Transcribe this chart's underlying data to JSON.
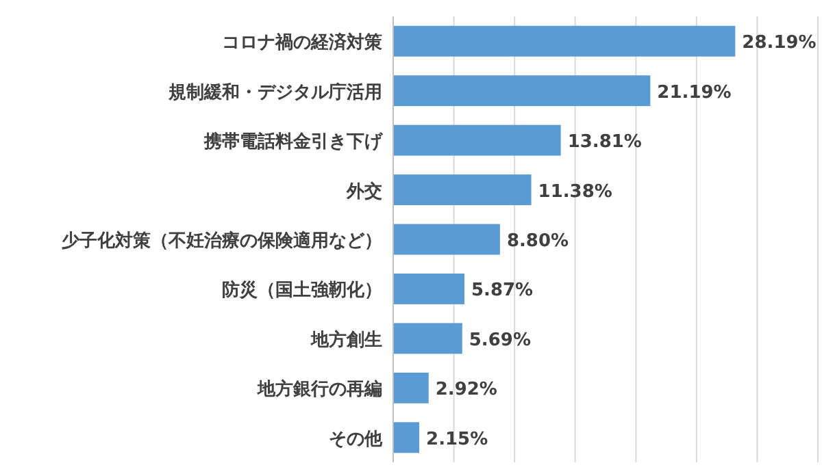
{
  "chart_data": {
    "type": "bar",
    "orientation": "horizontal",
    "categories": [
      "コロナ禍の経済対策",
      "規制緩和・デジタル庁活用",
      "携帯電話料金引き下げ",
      "外交",
      "少子化対策（不妊治療の保険適用など）",
      "防災（国土強靭化）",
      "地方創生",
      "地方銀行の再編",
      "その他"
    ],
    "values": [
      28.19,
      21.19,
      13.81,
      11.38,
      8.8,
      5.87,
      5.69,
      2.92,
      2.15
    ],
    "value_labels": [
      "28.19%",
      "21.19%",
      "13.81%",
      "11.38%",
      "8.80%",
      "5.87%",
      "5.69%",
      "2.92%",
      "2.15%"
    ],
    "color": "#5b9bd5",
    "xlim": [
      0,
      35
    ],
    "xticks": [
      {
        "value": 0,
        "label": null
      },
      {
        "value": 5,
        "label": null
      },
      {
        "value": 10,
        "label": null
      },
      {
        "value": 15,
        "label": null
      },
      {
        "value": 20,
        "label": null
      },
      {
        "value": 25,
        "label": null
      },
      {
        "value": 30,
        "label": null
      },
      {
        "value": 35,
        "label": null
      }
    ],
    "grid": "x",
    "tick_labels": "y"
  }
}
